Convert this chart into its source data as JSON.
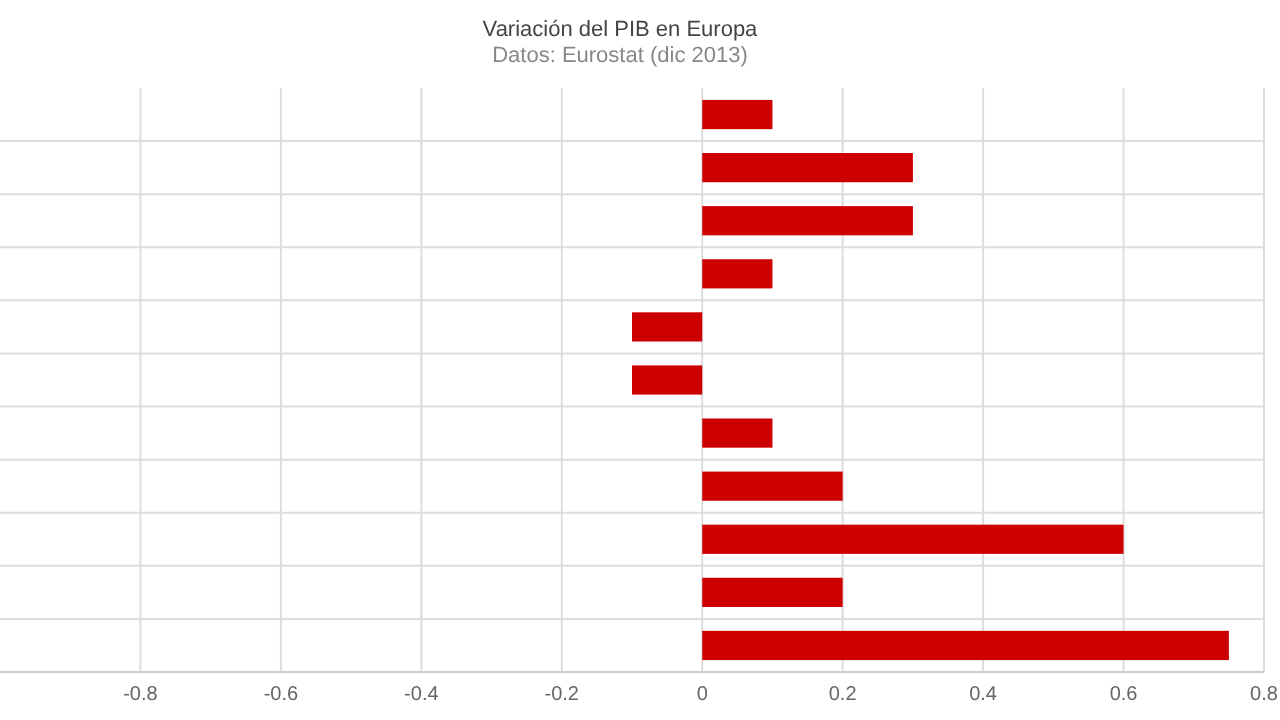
{
  "chart_data": {
    "type": "bar",
    "orientation": "horizontal",
    "title": "Variación del PIB en Europa",
    "subtitle": "Datos: Eurostat (dic 2013)",
    "categories": [
      null,
      null,
      null,
      null,
      null,
      null,
      null,
      null,
      null,
      null,
      null
    ],
    "values": [
      0.1,
      0.3,
      0.3,
      0.1,
      -0.1,
      -0.1,
      0.1,
      0.2,
      0.6,
      0.2,
      0.75
    ],
    "color": "#cc0000",
    "xlim": [
      -1,
      0.8
    ],
    "xticks": [
      -0.8,
      -0.6,
      -0.4,
      -0.2,
      0,
      0.2,
      0.4,
      0.6,
      0.8
    ],
    "grid": true
  }
}
